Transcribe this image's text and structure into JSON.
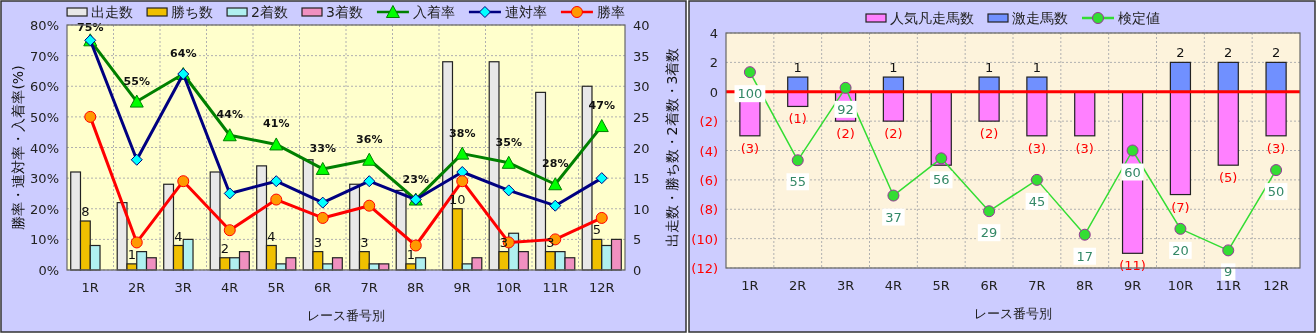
{
  "chart_data": [
    {
      "type": "bar",
      "categories": [
        "1R",
        "2R",
        "3R",
        "4R",
        "5R",
        "6R",
        "7R",
        "8R",
        "9R",
        "10R",
        "11R",
        "12R"
      ],
      "xlabel": "レース番号別",
      "ylabel": "勝率・連対率・入着率(%)",
      "y2label": "出走数・勝ち数・2着数・3着数",
      "ylim": [
        0,
        80
      ],
      "yticks": [
        {
          "value": 0,
          "label": "0%"
        },
        {
          "value": 10,
          "label": "10%"
        },
        {
          "value": 20,
          "label": "20%"
        },
        {
          "value": 30,
          "label": "30%"
        },
        {
          "value": 40,
          "label": "40%"
        },
        {
          "value": 50,
          "label": "50%"
        },
        {
          "value": 60,
          "label": "60%"
        },
        {
          "value": 70,
          "label": "70%"
        },
        {
          "value": 80,
          "label": "80%"
        }
      ],
      "y2lim": [
        0,
        40
      ],
      "y2ticks": [
        0,
        5,
        10,
        15,
        20,
        25,
        30,
        35,
        40
      ],
      "grid": true,
      "legend": "top",
      "series": [
        {
          "name": "出走数",
          "axis": "y2",
          "color": "#e8e8e8",
          "values": [
            16,
            11,
            14,
            16,
            17,
            18,
            14,
            13,
            34,
            34,
            29,
            30
          ]
        },
        {
          "name": "勝ち数",
          "axis": "y2",
          "color": "#f0c000",
          "values": [
            8,
            1,
            4,
            2,
            4,
            3,
            3,
            1,
            10,
            3,
            3,
            5
          ],
          "value_labels": [
            "8",
            "1",
            "4",
            "2",
            "4",
            "3",
            "3",
            "1",
            "10",
            "3",
            "3",
            "5"
          ]
        },
        {
          "name": "2着数",
          "axis": "y2",
          "color": "#b0f0f0",
          "values": [
            4,
            3,
            5,
            2,
            1,
            1,
            1,
            2,
            1,
            6,
            3,
            4
          ]
        },
        {
          "name": "3着数",
          "axis": "y2",
          "color": "#f090c0",
          "values": [
            0,
            2,
            0,
            3,
            2,
            2,
            1,
            0,
            2,
            3,
            2,
            5
          ]
        },
        {
          "name": "入着率",
          "type": "line",
          "color": "#008000",
          "marker": "triangle",
          "values": [
            75,
            55,
            64,
            44,
            41,
            33,
            36,
            23,
            38,
            35,
            28,
            47
          ],
          "value_labels": [
            "75%",
            "55%",
            "64%",
            "44%",
            "41%",
            "33%",
            "36%",
            "23%",
            "38%",
            "35%",
            "28%",
            "47%"
          ]
        },
        {
          "name": "連対率",
          "type": "line",
          "color": "#000080",
          "marker": "diamond",
          "values": [
            75,
            36,
            64,
            25,
            29,
            22,
            29,
            23,
            32,
            26,
            21,
            30
          ]
        },
        {
          "name": "勝率",
          "type": "line",
          "color": "#ff0000",
          "marker": "circle",
          "values": [
            50,
            9,
            29,
            13,
            23,
            17,
            21,
            8,
            29,
            9,
            10,
            17
          ]
        }
      ]
    },
    {
      "type": "bar",
      "stacked": true,
      "categories": [
        "1R",
        "2R",
        "3R",
        "4R",
        "5R",
        "6R",
        "7R",
        "8R",
        "9R",
        "10R",
        "11R",
        "12R"
      ],
      "xlabel": "レース番号別",
      "ylim": [
        -12,
        4
      ],
      "yticks": [
        {
          "value": -12,
          "label": "(12)"
        },
        {
          "value": -10,
          "label": "(10)"
        },
        {
          "value": -8,
          "label": "(8)"
        },
        {
          "value": -6,
          "label": "(6)"
        },
        {
          "value": -4,
          "label": "(4)"
        },
        {
          "value": -2,
          "label": "(2)"
        },
        0,
        2,
        4
      ],
      "y2lim": [
        0,
        120
      ],
      "grid": true,
      "legend": "top",
      "ref_lines": [
        {
          "axis": "y",
          "value": 0,
          "color": "#ff0000"
        }
      ],
      "series": [
        {
          "name": "人気凡走馬数",
          "color": "#ff80ff",
          "values": [
            -3,
            -1,
            -2,
            -2,
            -5,
            -2,
            -3,
            -3,
            -11,
            -7,
            -5,
            -3
          ],
          "value_labels": [
            "(3)",
            "(1)",
            "(2)",
            "(2)",
            null,
            "(2)",
            "(3)",
            "(3)",
            "(11)",
            "(7)",
            "(5)",
            "(3)"
          ]
        },
        {
          "name": "激走馬数",
          "color": "#7090ff",
          "values": [
            0,
            1,
            0,
            1,
            0,
            1,
            1,
            0,
            0,
            2,
            2,
            2
          ],
          "value_labels": [
            null,
            "1",
            null,
            "1",
            null,
            "1",
            "1",
            null,
            null,
            "2",
            "2",
            "2"
          ]
        },
        {
          "name": "検定値",
          "type": "line",
          "axis": "y2",
          "color": "#33dd33",
          "marker": "circle",
          "values": [
            100,
            55,
            92,
            37,
            56,
            29,
            45,
            17,
            60,
            20,
            9,
            50
          ],
          "value_labels": [
            "100",
            "55",
            "92",
            "37",
            "56",
            "29",
            "45",
            "17",
            "60",
            "20",
            "9",
            "50"
          ]
        }
      ]
    }
  ]
}
